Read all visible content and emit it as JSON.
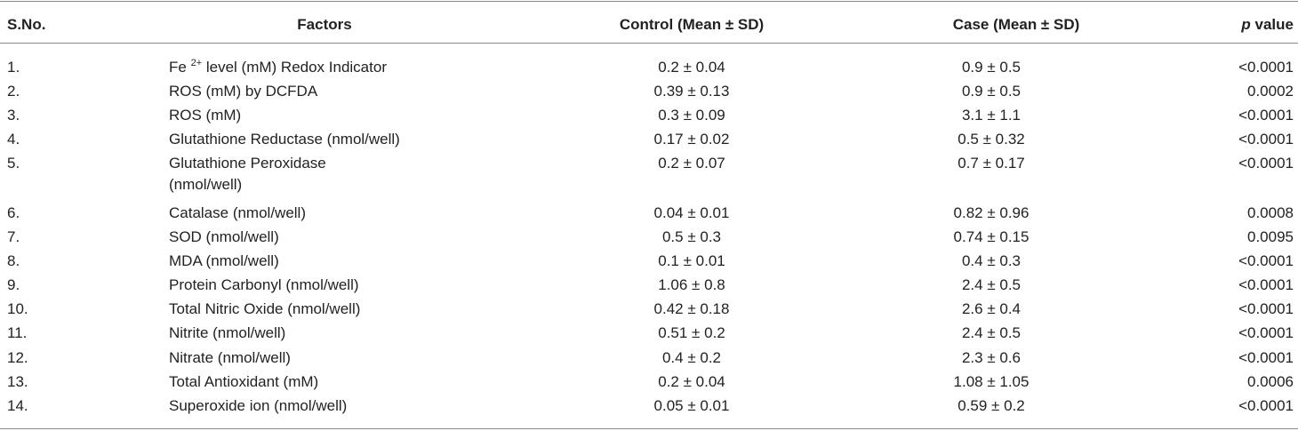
{
  "table": {
    "header": {
      "sno": "S.No.",
      "factors": "Factors",
      "control": "Control (Mean ± SD)",
      "case": "Case (Mean ± SD)",
      "p_italic": "p",
      "p_rest": "value"
    },
    "rows": [
      [
        "1.",
        {
          "before": "Fe",
          "sup": "2+",
          "after": "level (mM) Redox Indicator"
        },
        "0.2 ± 0.04",
        "0.9 ± 0.5",
        "<0.0001"
      ],
      [
        "2.",
        "ROS (mM) by DCFDA",
        "0.39 ± 0.13",
        "0.9 ± 0.5",
        "0.0002"
      ],
      [
        "3.",
        "ROS (mM)",
        "0.3 ± 0.09",
        "3.1 ± 1.1",
        "<0.0001"
      ],
      [
        "4.",
        "Glutathione Reductase (nmol/well)",
        "0.17 ± 0.02",
        "0.5 ± 0.32",
        "<0.0001"
      ],
      [
        "5.",
        [
          "Glutathione Peroxidase",
          "(nmol/well)"
        ],
        "0.2 ± 0.07",
        "0.7 ± 0.17",
        "<0.0001"
      ],
      [
        "6.",
        "Catalase (nmol/well)",
        "0.04 ± 0.01",
        "0.82 ± 0.96",
        "0.0008"
      ],
      [
        "7.",
        "SOD (nmol/well)",
        "0.5 ± 0.3",
        "0.74 ± 0.15",
        "0.0095"
      ],
      [
        "8.",
        "MDA (nmol/well)",
        "0.1 ± 0.01",
        "0.4 ± 0.3",
        "<0.0001"
      ],
      [
        "9.",
        "Protein Carbonyl (nmol/well)",
        "1.06 ± 0.8",
        "2.4 ± 0.5",
        "<0.0001"
      ],
      [
        "10.",
        "Total Nitric Oxide (nmol/well)",
        "0.42 ± 0.18",
        "2.6 ± 0.4",
        "<0.0001"
      ],
      [
        "11.",
        "Nitrite (nmol/well)",
        "0.51 ± 0.2",
        "2.4 ± 0.5",
        "<0.0001"
      ],
      [
        "12.",
        "Nitrate (nmol/well)",
        "0.4 ± 0.2",
        "2.3 ± 0.6",
        "<0.0001"
      ],
      [
        "13.",
        "Total Antioxidant (mM)",
        "0.2 ± 0.04",
        "1.08 ± 1.05",
        "0.0006"
      ],
      [
        "14.",
        "Superoxide ion (nmol/well)",
        "0.05 ± 0.01",
        "0.59 ± 0.2",
        "<0.0001"
      ]
    ]
  }
}
